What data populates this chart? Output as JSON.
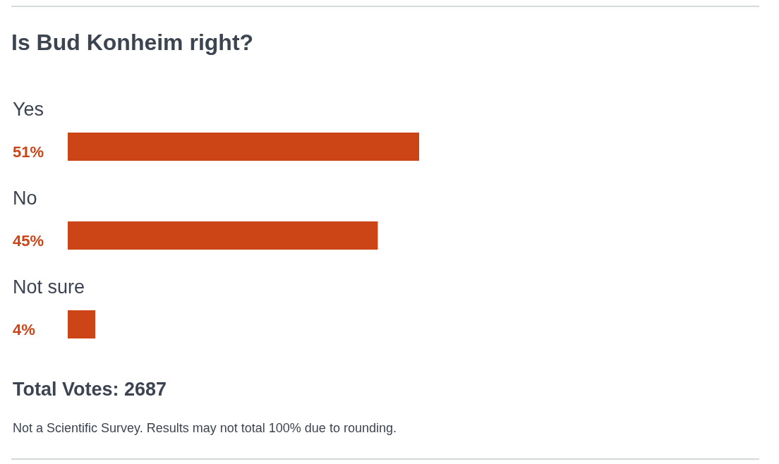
{
  "chart_data": {
    "type": "bar",
    "orientation": "horizontal",
    "title": "Is Bud Konheim right?",
    "categories": [
      "Yes",
      "No",
      "Not sure"
    ],
    "values": [
      51,
      45,
      4
    ],
    "color": "#cb4517",
    "value_labels": [
      "51%",
      "45%",
      "4%"
    ],
    "tick_labels": "y",
    "grid": false,
    "legend": false,
    "annotations": [
      "Total Votes: 2687",
      "Not a Scientific Survey. Results may not total 100% due to rounding."
    ]
  }
}
